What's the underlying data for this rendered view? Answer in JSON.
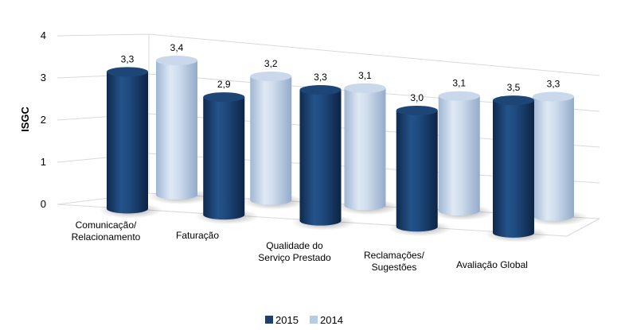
{
  "chart_data": {
    "type": "bar",
    "title": "",
    "xlabel": "",
    "ylabel": "ISGC",
    "ylim": [
      0,
      4
    ],
    "yticks": [
      "0",
      "1",
      "2",
      "3",
      "4"
    ],
    "categories": [
      [
        "Comunicação/",
        "Relacionamento"
      ],
      [
        "Faturação"
      ],
      [
        "Qualidade do",
        "Serviço Prestado"
      ],
      [
        "Reclamações/",
        "Sugestões"
      ],
      [
        "Avaliação Global"
      ]
    ],
    "series": [
      {
        "name": "2015",
        "color": "#1a3f6e",
        "values": [
          3.3,
          2.9,
          3.3,
          3.0,
          3.5
        ],
        "labels": [
          "3,3",
          "2,9",
          "3,3",
          "3,0",
          "3,5"
        ]
      },
      {
        "name": "2014",
        "color": "#b7cbe3",
        "values": [
          3.4,
          3.2,
          3.1,
          3.1,
          3.3
        ],
        "labels": [
          "3,4",
          "3,2",
          "3,1",
          "3,1",
          "3,3"
        ]
      }
    ],
    "grid": true,
    "legend": "bottom-center",
    "style": "3d-cylinder"
  }
}
